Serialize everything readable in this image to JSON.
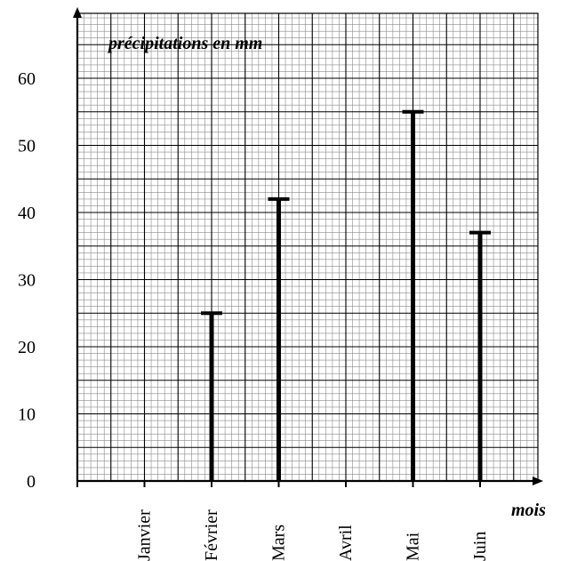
{
  "chart_data": {
    "type": "bar",
    "title": "",
    "ylabel": "précipitations en mm",
    "xlabel": "mois",
    "categories": [
      "Janvier",
      "Février",
      "Mars",
      "Avril",
      "Mai",
      "Juin"
    ],
    "values": [
      null,
      25,
      42,
      null,
      55,
      37
    ],
    "ylim": [
      0,
      70
    ],
    "yticks": [
      0,
      10,
      20,
      30,
      40,
      50,
      60
    ],
    "grid": true,
    "bar_style": "thick vertical line with horizontal cap",
    "color": "#000000"
  }
}
